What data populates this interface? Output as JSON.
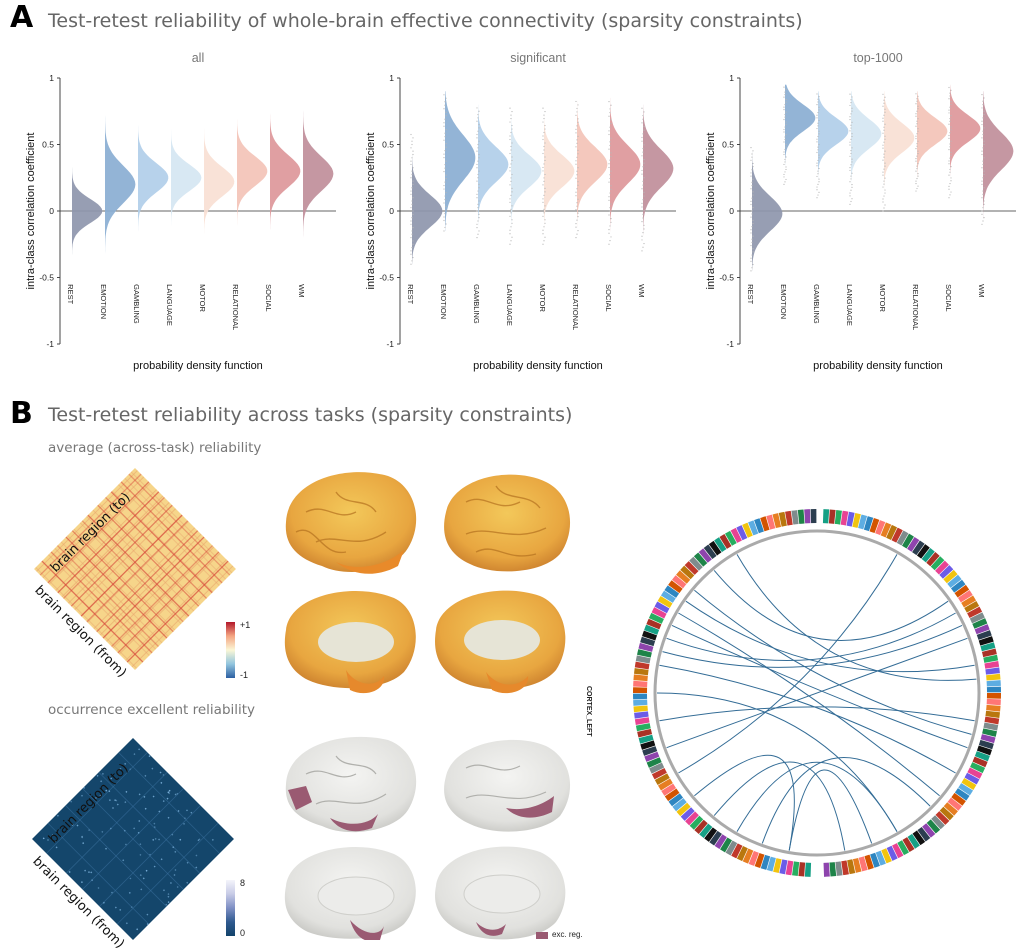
{
  "panelA": {
    "letter": "A",
    "title": "Test-retest reliability of whole-brain effective connectivity (sparsity constraints)",
    "ylabel": "intra-class correlation coefficient",
    "xlabel": "probability density function"
  },
  "panelB": {
    "letter": "B",
    "title": "Test-retest reliability across tasks (sparsity constraints)",
    "avg_title": "average (across-task) reliability",
    "occ_title": "occurrence excellent reliability",
    "axis_to": "brain region (to)",
    "axis_from": "brain region (from)",
    "avg_cbar_ticks": [
      "+1",
      "-1"
    ],
    "occ_cbar_ticks": [
      "8",
      "0"
    ],
    "legend_label": "exc. reg.",
    "circle_side_label": "CORTEX_LEFT"
  },
  "chart_data": [
    {
      "type": "area",
      "title": "all",
      "ylabel": "intra-class correlation coefficient",
      "xlabel": "probability density function",
      "ylim": [
        -1,
        1
      ],
      "yticks": [
        -1,
        -0.5,
        0,
        0.5,
        1
      ],
      "ytick_labels": [
        "-1",
        "-0.5",
        "0",
        "0.5",
        "1"
      ],
      "categories": [
        "REST",
        "EMOTION",
        "GAMBLING",
        "LANGUAGE",
        "MOTOR",
        "RELATIONAL",
        "SOCIAL",
        "WM"
      ],
      "series_colors": [
        "#8e96ad",
        "#8aaed3",
        "#b1cee9",
        "#d5e6f2",
        "#f8dfd4",
        "#f3c3b7",
        "#dd979a",
        "#c08e9a"
      ],
      "distributions": [
        {
          "mean": 0.0,
          "sd": 0.09,
          "min": -0.45,
          "max": 0.55
        },
        {
          "mean": 0.2,
          "sd": 0.14,
          "min": -0.45,
          "max": 0.85
        },
        {
          "mean": 0.25,
          "sd": 0.11,
          "min": -0.35,
          "max": 0.7
        },
        {
          "mean": 0.25,
          "sd": 0.1,
          "min": -0.3,
          "max": 0.7
        },
        {
          "mean": 0.22,
          "sd": 0.11,
          "min": -0.35,
          "max": 0.8
        },
        {
          "mean": 0.3,
          "sd": 0.11,
          "min": -0.25,
          "max": 0.8
        },
        {
          "mean": 0.3,
          "sd": 0.12,
          "min": -0.3,
          "max": 0.85
        },
        {
          "mean": 0.28,
          "sd": 0.13,
          "min": -0.45,
          "max": 0.8
        }
      ]
    },
    {
      "type": "area",
      "title": "significant",
      "ylabel": "intra-class correlation coefficient",
      "xlabel": "probability density function",
      "ylim": [
        -1,
        1
      ],
      "yticks": [
        -1,
        -0.5,
        0,
        0.5,
        1
      ],
      "ytick_labels": [
        "-1",
        "-0.5",
        "0",
        "0.5",
        "1"
      ],
      "categories": [
        "REST",
        "EMOTION",
        "GAMBLING",
        "LANGUAGE",
        "MOTOR",
        "RELATIONAL",
        "SOCIAL",
        "WM"
      ],
      "series_colors": [
        "#8e96ad",
        "#8aaed3",
        "#b1cee9",
        "#d5e6f2",
        "#f8dfd4",
        "#f3c3b7",
        "#dd979a",
        "#c08e9a"
      ],
      "distributions": [
        {
          "mean": 0.0,
          "sd": 0.12,
          "min": -0.4,
          "max": 0.6
        },
        {
          "mean": 0.4,
          "sd": 0.17,
          "min": -0.15,
          "max": 0.9
        },
        {
          "mean": 0.35,
          "sd": 0.13,
          "min": -0.2,
          "max": 0.8
        },
        {
          "mean": 0.3,
          "sd": 0.12,
          "min": -0.25,
          "max": 0.8
        },
        {
          "mean": 0.3,
          "sd": 0.12,
          "min": -0.25,
          "max": 0.8
        },
        {
          "mean": 0.35,
          "sd": 0.13,
          "min": -0.2,
          "max": 0.85
        },
        {
          "mean": 0.35,
          "sd": 0.14,
          "min": -0.25,
          "max": 0.85
        },
        {
          "mean": 0.32,
          "sd": 0.14,
          "min": -0.3,
          "max": 0.8
        }
      ]
    },
    {
      "type": "area",
      "title": "top-1000",
      "ylabel": "intra-class correlation coefficient",
      "xlabel": "probability density function",
      "ylim": [
        -1,
        1
      ],
      "yticks": [
        -1,
        -0.5,
        0,
        0.5,
        1
      ],
      "ytick_labels": [
        "-1",
        "-0.5",
        "0",
        "0.5",
        "1"
      ],
      "categories": [
        "REST",
        "EMOTION",
        "GAMBLING",
        "LANGUAGE",
        "MOTOR",
        "RELATIONAL",
        "SOCIAL",
        "WM"
      ],
      "series_colors": [
        "#8e96ad",
        "#8aaed3",
        "#b1cee9",
        "#d5e6f2",
        "#f8dfd4",
        "#f3c3b7",
        "#dd979a",
        "#c08e9a"
      ],
      "distributions": [
        {
          "mean": -0.02,
          "sd": 0.13,
          "min": -0.45,
          "max": 0.5
        },
        {
          "mean": 0.7,
          "sd": 0.1,
          "min": 0.2,
          "max": 0.95
        },
        {
          "mean": 0.6,
          "sd": 0.1,
          "min": 0.1,
          "max": 0.9
        },
        {
          "mean": 0.58,
          "sd": 0.11,
          "min": 0.05,
          "max": 0.9
        },
        {
          "mean": 0.55,
          "sd": 0.11,
          "min": 0.0,
          "max": 0.9
        },
        {
          "mean": 0.6,
          "sd": 0.1,
          "min": 0.15,
          "max": 0.9
        },
        {
          "mean": 0.62,
          "sd": 0.1,
          "min": 0.1,
          "max": 0.95
        },
        {
          "mean": 0.45,
          "sd": 0.14,
          "min": -0.1,
          "max": 0.9
        }
      ]
    }
  ],
  "colors": {
    "avg_matrix_base": "#f6d58a",
    "avg_matrix_line": "#d7473a",
    "occ_matrix_base": "#14466b",
    "occ_matrix_dot": "#7fb5df",
    "brain_warm": "#e8a640",
    "brain_gray": "#e3e3e0",
    "brain_mark": "#9a5a72",
    "chord_line": "#336c96"
  }
}
